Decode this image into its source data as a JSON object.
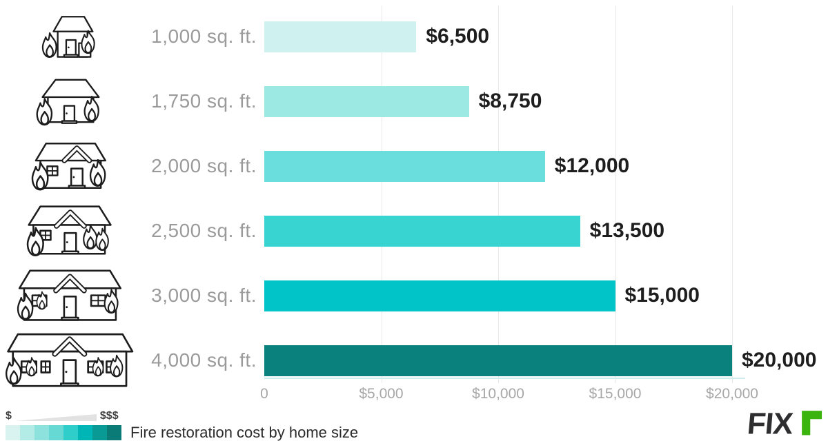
{
  "chart_data": {
    "type": "bar",
    "orientation": "horizontal",
    "title": "Fire restoration cost by home size",
    "categories": [
      "1,000 sq. ft.",
      "1,750 sq. ft.",
      "2,000 sq. ft.",
      "2,500 sq. ft.",
      "3,000 sq. ft.",
      "4,000 sq. ft."
    ],
    "values": [
      6500,
      8750,
      12000,
      13500,
      15000,
      20000
    ],
    "value_labels": [
      "$6,500",
      "$8,750",
      "$12,000",
      "$13,500",
      "$15,000",
      "$20,000"
    ],
    "bar_colors": [
      "#cff2f0",
      "#9ce9e4",
      "#6adedd",
      "#38d4d2",
      "#00c4c7",
      "#0b817e"
    ],
    "row_icon": "burning-house-icon",
    "xlim": [
      0,
      20000
    ],
    "x_ticks": [
      0,
      5000,
      10000,
      15000,
      20000
    ],
    "x_tick_labels": [
      "0",
      "$5,000",
      "$10,000",
      "$15,000",
      "$20,000"
    ],
    "grid": true,
    "grid_color": "#e8e8e8",
    "axis_line_color": "#cdecea",
    "legend_position": "bottom-left"
  },
  "legend": {
    "scale_min_label": "$",
    "scale_max_label": "$$$",
    "wedge_color": "#e2e2e2",
    "swatches": [
      "#d8f3f0",
      "#b3ebe6",
      "#8de2dd",
      "#66d9d5",
      "#2fcecb",
      "#00b5b5",
      "#0a9a96",
      "#0b7b77"
    ],
    "title": "Fire restoration cost by home size"
  },
  "logo": {
    "text": "FIX",
    "accent_glyph": "r",
    "text_color": "#2e2e31",
    "accent_color": "#3cb40f"
  }
}
